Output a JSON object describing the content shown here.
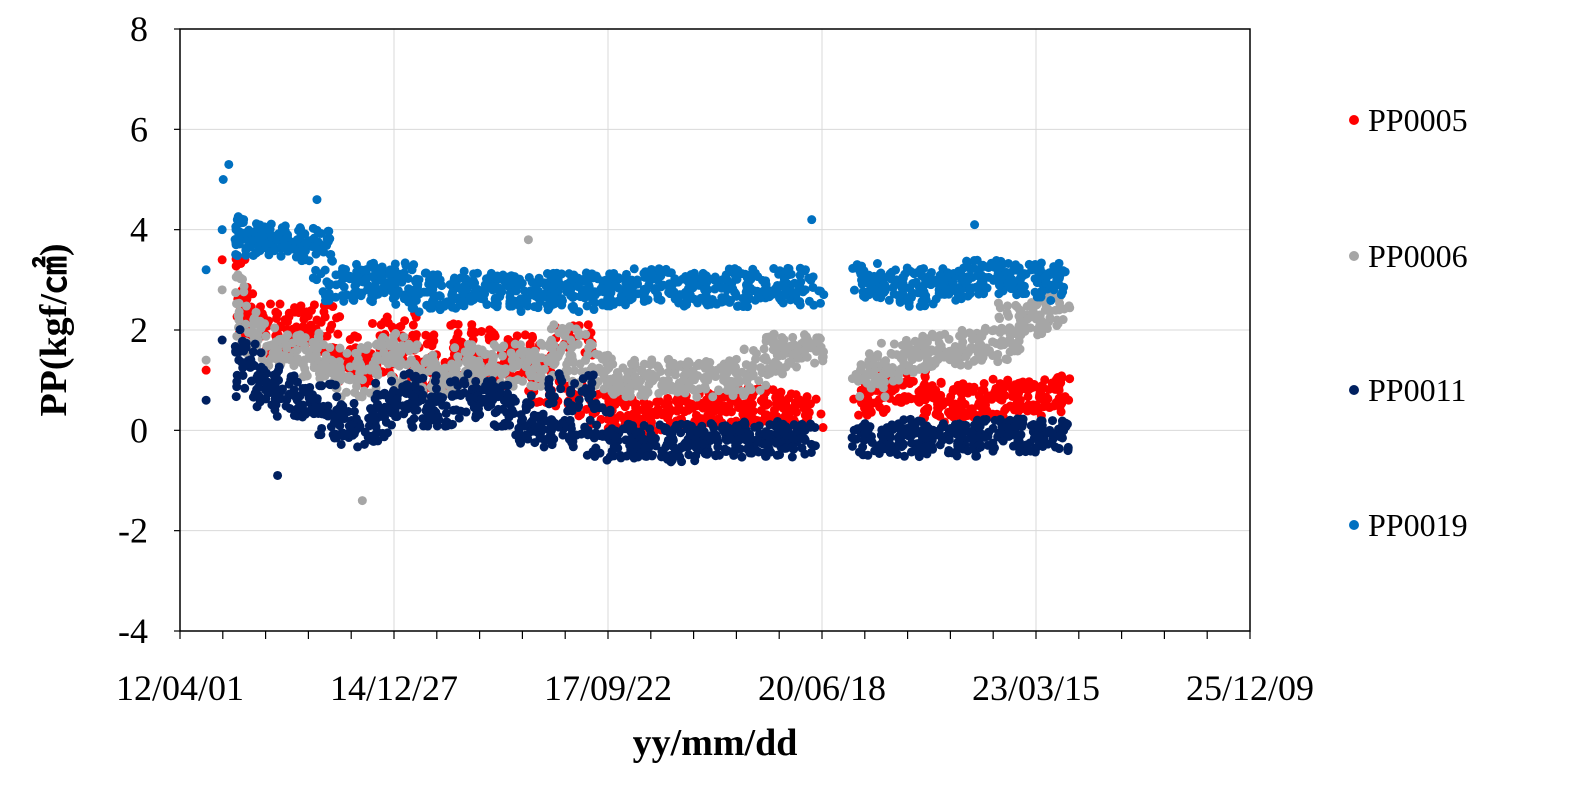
{
  "chart_data": {
    "type": "scatter",
    "title": "",
    "xlabel": "yy/mm/dd",
    "ylabel": "PP(kgf/㎠)",
    "xlim": [
      "2012-04-01",
      "2025-12-09"
    ],
    "ylim": [
      -4,
      8
    ],
    "x_tick_labels": [
      "12/04/01",
      "14/12/27",
      "17/09/22",
      "20/06/18",
      "23/03/15",
      "25/12/09"
    ],
    "y_tick_labels": [
      "8",
      "6",
      "4",
      "2",
      "0",
      "-2",
      "-4"
    ],
    "grid": true,
    "legend_position": "right",
    "legend": [
      "PP0005",
      "PP0006",
      "PP0011",
      "PP0019"
    ],
    "series": [
      {
        "name": "PP0005",
        "color": "#ff0000",
        "x": [
          "2012-08-01",
          "2012-10-15",
          "2013-01-01",
          "2013-04-01",
          "2013-07-01",
          "2013-10-01",
          "2014-01-01",
          "2014-04-01",
          "2014-07-01",
          "2014-10-01",
          "2015-01-01",
          "2015-04-01",
          "2015-07-01",
          "2015-10-01",
          "2016-01-01",
          "2016-04-01",
          "2016-07-01",
          "2016-10-01",
          "2017-01-01",
          "2017-04-01",
          "2017-07-01",
          "2017-10-01",
          "2018-01-01",
          "2018-04-01",
          "2018-07-01",
          "2018-10-01",
          "2019-01-01",
          "2019-04-01",
          "2019-07-01",
          "2019-10-01",
          "2020-01-01",
          "2020-04-01",
          "2021-01-01",
          "2021-04-01",
          "2021-07-01",
          "2021-10-01",
          "2022-01-01",
          "2022-04-01",
          "2022-07-01",
          "2022-10-01",
          "2023-01-01",
          "2023-04-01",
          "2023-07-01"
        ],
        "y": [
          1.2,
          3.4,
          2.6,
          2.2,
          1.8,
          2.0,
          2.2,
          1.6,
          1.2,
          1.4,
          2.0,
          1.6,
          1.0,
          1.2,
          1.8,
          1.2,
          1.6,
          1.4,
          0.8,
          1.8,
          0.6,
          0.4,
          0.2,
          0.3,
          0.3,
          0.4,
          0.3,
          0.4,
          0.5,
          0.5,
          0.4,
          0.3,
          0.6,
          0.8,
          0.9,
          0.7,
          0.5,
          0.6,
          0.6,
          0.7,
          0.6,
          0.7,
          0.8
        ]
      },
      {
        "name": "PP0006",
        "color": "#a6a6a6",
        "x": [
          "2012-08-01",
          "2012-10-15",
          "2013-01-01",
          "2013-04-01",
          "2013-07-01",
          "2013-10-01",
          "2014-01-01",
          "2014-04-01",
          "2014-07-01",
          "2014-10-01",
          "2015-01-01",
          "2015-04-01",
          "2015-07-01",
          "2015-10-01",
          "2016-01-01",
          "2016-04-01",
          "2016-07-01",
          "2016-10-01",
          "2017-01-01",
          "2017-04-01",
          "2017-07-01",
          "2017-10-01",
          "2018-01-01",
          "2018-04-01",
          "2018-07-01",
          "2018-10-01",
          "2019-01-01",
          "2019-04-01",
          "2019-07-01",
          "2019-10-01",
          "2020-01-01",
          "2020-04-01",
          "2021-01-01",
          "2021-04-01",
          "2021-07-01",
          "2021-10-01",
          "2022-01-01",
          "2022-04-01",
          "2022-07-01",
          "2022-10-01",
          "2023-01-01",
          "2023-04-01",
          "2023-07-01"
        ],
        "y": [
          1.4,
          2.8,
          2.2,
          1.8,
          1.6,
          1.6,
          1.4,
          1.2,
          1.0,
          1.4,
          1.6,
          1.2,
          1.0,
          1.0,
          1.4,
          1.2,
          1.4,
          1.2,
          1.4,
          1.8,
          1.2,
          1.0,
          1.0,
          1.1,
          1.0,
          1.1,
          1.0,
          1.0,
          1.1,
          1.4,
          1.6,
          1.6,
          1.0,
          1.2,
          1.4,
          1.5,
          1.6,
          1.6,
          1.7,
          1.7,
          2.2,
          2.3,
          2.4
        ]
      },
      {
        "name": "PP0011",
        "color": "#002060",
        "x": [
          "2012-08-01",
          "2012-10-15",
          "2013-01-01",
          "2013-04-01",
          "2013-07-01",
          "2013-10-01",
          "2014-01-01",
          "2014-04-01",
          "2014-07-01",
          "2014-10-01",
          "2015-01-01",
          "2015-04-01",
          "2015-07-01",
          "2015-10-01",
          "2016-01-01",
          "2016-04-01",
          "2016-07-01",
          "2016-10-01",
          "2017-01-01",
          "2017-04-01",
          "2017-07-01",
          "2017-10-01",
          "2018-01-01",
          "2018-04-01",
          "2018-07-01",
          "2018-10-01",
          "2019-01-01",
          "2019-04-01",
          "2019-07-01",
          "2019-10-01",
          "2020-01-01",
          "2020-04-01",
          "2021-01-01",
          "2021-04-01",
          "2021-07-01",
          "2021-10-01",
          "2022-01-01",
          "2022-04-01",
          "2022-07-01",
          "2022-10-01",
          "2023-01-01",
          "2023-04-01",
          "2023-07-01"
        ],
        "y": [
          0.6,
          1.8,
          1.4,
          1.0,
          0.8,
          0.6,
          0.6,
          0.2,
          0.0,
          0.2,
          0.6,
          0.8,
          0.4,
          0.4,
          0.8,
          0.6,
          0.4,
          0.0,
          0.0,
          0.8,
          0.2,
          -0.2,
          -0.3,
          -0.2,
          -0.2,
          -0.3,
          -0.2,
          -0.2,
          -0.2,
          -0.1,
          -0.2,
          -0.2,
          -0.2,
          -0.2,
          -0.1,
          -0.2,
          -0.2,
          -0.2,
          -0.1,
          -0.1,
          -0.1,
          -0.1,
          -0.1
        ]
      },
      {
        "name": "PP0019",
        "color": "#0070c0",
        "x": [
          "2012-08-01",
          "2012-10-15",
          "2013-01-01",
          "2013-04-01",
          "2013-07-01",
          "2013-10-01",
          "2014-01-01",
          "2014-04-01",
          "2014-07-01",
          "2014-10-01",
          "2015-01-01",
          "2015-04-01",
          "2015-07-01",
          "2015-10-01",
          "2016-01-01",
          "2016-04-01",
          "2016-07-01",
          "2016-10-01",
          "2017-01-01",
          "2017-04-01",
          "2017-07-01",
          "2017-10-01",
          "2018-01-01",
          "2018-04-01",
          "2018-07-01",
          "2018-10-01",
          "2019-01-01",
          "2019-04-01",
          "2019-07-01",
          "2019-10-01",
          "2020-01-01",
          "2020-04-01",
          "2021-01-01",
          "2021-04-01",
          "2021-07-01",
          "2021-10-01",
          "2022-01-01",
          "2022-04-01",
          "2022-07-01",
          "2022-10-01",
          "2023-01-01",
          "2023-04-01",
          "2023-07-01"
        ],
        "y": [
          3.2,
          4.0,
          3.9,
          3.8,
          3.8,
          3.8,
          3.7,
          2.9,
          2.9,
          3.0,
          3.0,
          2.8,
          2.7,
          2.8,
          2.9,
          2.8,
          2.8,
          2.7,
          2.8,
          2.8,
          2.7,
          2.8,
          2.8,
          2.9,
          2.9,
          2.8,
          2.8,
          2.8,
          2.9,
          2.9,
          2.9,
          2.8,
          3.0,
          2.9,
          2.9,
          2.8,
          2.9,
          3.0,
          3.1,
          3.0,
          3.0,
          3.0,
          2.9
        ]
      }
    ],
    "annotations": {
      "outliers": [
        {
          "series": "PP0019",
          "x": "2012-11-15",
          "y": 5.3
        },
        {
          "series": "PP0019",
          "x": "2012-10-20",
          "y": 5.0
        },
        {
          "series": "PP0019",
          "x": "2014-01-01",
          "y": 4.6
        },
        {
          "series": "PP0019",
          "x": "2020-05-01",
          "y": 4.2
        },
        {
          "series": "PP0019",
          "x": "2022-06-01",
          "y": 4.1
        },
        {
          "series": "PP0006",
          "x": "2014-08-01",
          "y": -1.4
        },
        {
          "series": "PP0011",
          "x": "2013-07-01",
          "y": -0.9
        },
        {
          "series": "PP0006",
          "x": "2016-09-15",
          "y": 3.8
        }
      ]
    }
  }
}
